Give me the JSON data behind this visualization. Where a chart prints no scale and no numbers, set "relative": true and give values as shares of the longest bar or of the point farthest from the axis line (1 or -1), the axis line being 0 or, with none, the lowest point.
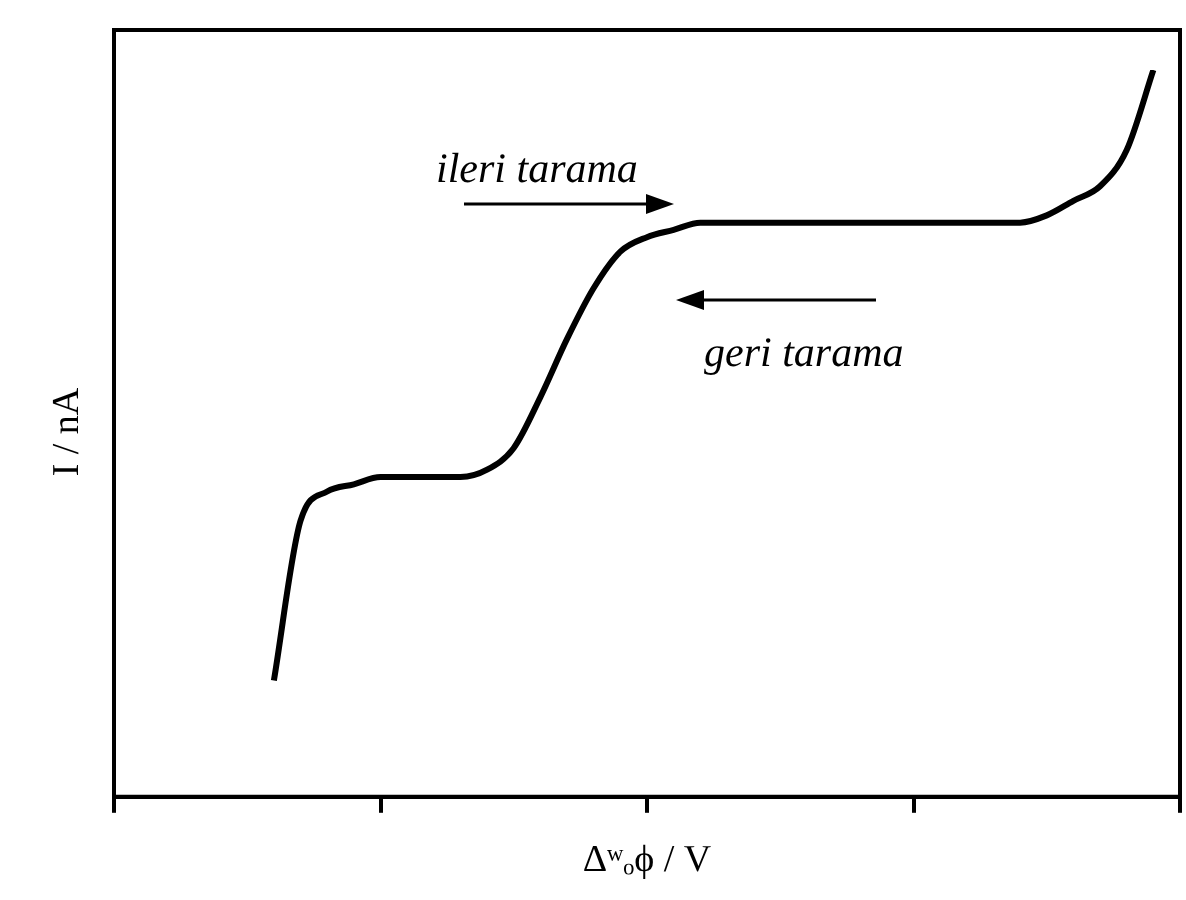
{
  "chart_data": {
    "type": "line",
    "relative": true,
    "xlabel": "Δʷₒϕ / V",
    "ylabel": "I / nA",
    "categories": [
      null,
      null,
      null,
      null,
      null,
      null,
      null,
      null,
      null,
      null,
      null,
      null,
      null,
      null,
      null,
      null,
      null,
      null,
      null,
      null,
      null,
      null,
      null,
      null,
      null,
      null,
      null,
      null,
      null,
      null,
      null,
      null,
      null,
      null,
      null,
      null,
      null,
      null,
      null,
      null,
      null
    ],
    "series": [
      {
        "color": "#000000",
        "values": [
          null,
          null,
          null,
          null,
          null,
          null,
          0.16,
          0.38,
          0.42,
          0.43,
          0.44,
          0.44,
          0.44,
          0.44,
          0.45,
          0.48,
          0.55,
          0.63,
          0.7,
          0.75,
          0.77,
          0.78,
          0.79,
          0.79,
          0.79,
          0.79,
          0.79,
          0.79,
          0.79,
          0.79,
          0.79,
          0.79,
          0.79,
          0.79,
          0.79,
          0.8,
          0.82,
          0.84,
          0.89,
          1,
          null
        ]
      }
    ],
    "annotations": [
      "ileri tarama",
      "geri tarama"
    ],
    "grid": false,
    "legend": false,
    "marker": "none",
    "line_style": "solid"
  }
}
